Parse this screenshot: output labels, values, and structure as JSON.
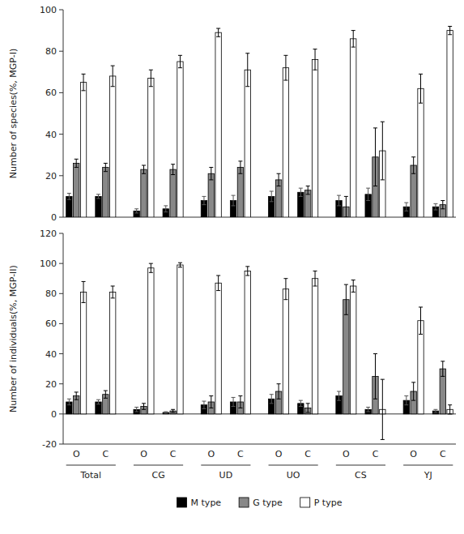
{
  "chart_data": [
    {
      "type": "bar",
      "y_label": "Number of species(%, MGP-I)",
      "categories": [
        null,
        null,
        null,
        null,
        null,
        null,
        null,
        null,
        null,
        null,
        null,
        null
      ],
      "series": [
        {
          "color": "#000000",
          "values": [
            10,
            10,
            3,
            4,
            8,
            8,
            10,
            12,
            8,
            11,
            5,
            5
          ],
          "errors": [
            1.5,
            1.0,
            1.0,
            1.5,
            2.0,
            2.5,
            2.5,
            2.0,
            2.5,
            3.0,
            2.0,
            1.5
          ]
        },
        {
          "color": "#888888",
          "values": [
            26,
            24,
            23,
            23,
            21,
            24,
            18,
            13,
            5,
            29,
            25,
            6
          ],
          "errors": [
            2.0,
            2.0,
            2.0,
            2.5,
            3.0,
            3.0,
            3.0,
            2.0,
            5.0,
            14.0,
            4.0,
            2.0
          ]
        },
        {
          "color": "#ffffff",
          "values": [
            65,
            68,
            67,
            75,
            89,
            71,
            72,
            76,
            86,
            32,
            62,
            90
          ],
          "errors": [
            4.0,
            5.0,
            4.0,
            3.0,
            2.0,
            8.0,
            6.0,
            5.0,
            4.0,
            14.0,
            7.0,
            2.0
          ]
        }
      ],
      "ylim": [
        0,
        100
      ],
      "yticks": [
        0,
        20,
        40,
        60,
        80,
        100
      ]
    },
    {
      "type": "bar",
      "y_label": "Number of individuals(%, MGP-II)",
      "categories": [
        "O",
        "C",
        "O",
        "C",
        "O",
        "C",
        "O",
        "C",
        "O",
        "C",
        "O",
        "C"
      ],
      "groups": [
        "Total",
        "CG",
        "UD",
        "UO",
        "CS",
        "YJ"
      ],
      "series": [
        {
          "name": "M type",
          "color": "#000000",
          "values": [
            8,
            8,
            3,
            1,
            6,
            8,
            10,
            7,
            12,
            3,
            9,
            2
          ],
          "errors": [
            2.0,
            1.5,
            1.5,
            0.5,
            2.5,
            3.0,
            3.0,
            2.0,
            3.0,
            1.5,
            3.0,
            1.0
          ]
        },
        {
          "name": "G type",
          "color": "#888888",
          "values": [
            12,
            13,
            5,
            2,
            8,
            8,
            15,
            4,
            76,
            25,
            15,
            30
          ],
          "errors": [
            2.5,
            2.5,
            2.0,
            1.0,
            4.0,
            4.0,
            5.0,
            3.0,
            10.0,
            15.0,
            6.0,
            5.0
          ]
        },
        {
          "name": "P type",
          "color": "#ffffff",
          "values": [
            81,
            81,
            97,
            99,
            87,
            95,
            83,
            90,
            85,
            3,
            62,
            3
          ],
          "errors": [
            7.0,
            4.0,
            3.0,
            1.5,
            5.0,
            3.0,
            7.0,
            5.0,
            4.0,
            20.0,
            9.0,
            3.0
          ]
        }
      ],
      "ylim": [
        -20,
        120
      ],
      "yticks": [
        -20,
        0,
        20,
        40,
        60,
        80,
        100,
        120
      ],
      "legend": "bottom"
    }
  ]
}
